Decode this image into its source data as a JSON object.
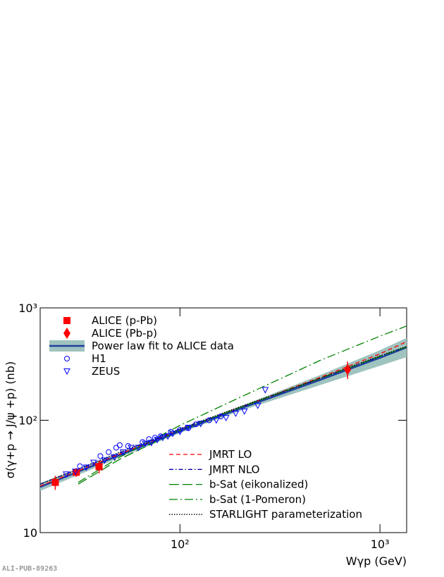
{
  "chart_data": {
    "type": "scatter",
    "y_label": "σ(γ+p → J/ψ +p) (nb)",
    "x_label": "Wγp (GeV)",
    "footnote": "ALI-PUB-89263",
    "xscale": "log",
    "yscale": "log",
    "xlim": [
      20,
      1360
    ],
    "ylim": [
      10,
      1000
    ],
    "xticks": [
      {
        "value": 100,
        "label": "10²"
      },
      {
        "value": 1000,
        "label": "10³"
      }
    ],
    "yticks": [
      10,
      {
        "value": 100,
        "label": "10²"
      },
      {
        "value": 1000,
        "label": "10³"
      }
    ],
    "series": [
      {
        "name": "ALICE (p-Pb)",
        "color": "#ff0000",
        "marker": "square",
        "legend": "upper left",
        "x": [
          23.8,
          30.3,
          39.4
        ],
        "values": [
          28,
          34.4,
          38.6
        ],
        "errors": [
          4,
          3,
          5
        ]
      },
      {
        "name": "ALICE (Pb-p)",
        "color": "#ff0000",
        "marker": "diamond",
        "legend": "upper left",
        "x": [
          689
        ],
        "values": [
          283
        ],
        "errors": [
          50
        ]
      },
      {
        "name": "Power law fit to ALICE data",
        "color": "#1f3f9f",
        "marker": "band-line",
        "band_color": "#9fc3bf",
        "legend": "upper left",
        "x": [
          20,
          50,
          100,
          200,
          500,
          1000,
          1360
        ],
        "values": [
          25.5,
          49,
          80,
          127,
          228,
          360,
          445
        ],
        "lower": [
          23.5,
          46.5,
          77,
          121,
          205,
          305,
          365
        ],
        "upper": [
          27.5,
          51.5,
          83,
          133,
          252,
          420,
          540
        ]
      },
      {
        "name": "H1",
        "color": "#0000ff",
        "marker": "circle",
        "legend": "upper left",
        "x": [
          31.6,
          40,
          44,
          48,
          50,
          55,
          65,
          70,
          75,
          80,
          90,
          100,
          110,
          120,
          140,
          160
        ],
        "values": [
          39,
          48,
          52,
          57,
          60,
          59,
          64,
          68,
          70,
          72,
          79,
          82,
          85,
          92,
          100,
          108
        ]
      },
      {
        "name": "ZEUS",
        "color": "#0000ff",
        "marker": "triangle-down",
        "legend": "upper left",
        "x": [
          27,
          30,
          34,
          37,
          42,
          47,
          52,
          57,
          62,
          67,
          72,
          77,
          82,
          87,
          92,
          100,
          110,
          127,
          152,
          170,
          190,
          210,
          245,
          267
        ],
        "values": [
          33,
          35,
          38,
          42,
          44,
          47,
          52,
          57,
          57,
          62,
          63,
          67,
          70,
          72,
          76,
          79,
          86,
          93,
          100,
          105,
          115,
          120,
          135,
          186
        ]
      },
      {
        "name": "JMRT LO",
        "color": "#ff0000",
        "marker": "line",
        "dash": "6,4",
        "legend": "lower right",
        "x": [
          20,
          50,
          100,
          200,
          500,
          1000,
          1360
        ],
        "values": [
          26,
          50,
          82,
          130,
          240,
          390,
          500
        ]
      },
      {
        "name": "JMRT NLO",
        "color": "#0000aa",
        "marker": "line",
        "dash": "6,3,1.5,3",
        "legend": "lower right",
        "x": [
          20,
          50,
          100,
          200,
          500,
          1000,
          1360
        ],
        "values": [
          27,
          51,
          83,
          130,
          235,
          370,
          450
        ]
      },
      {
        "name": "b-Sat (eikonalized)",
        "color": "#008000",
        "marker": "line",
        "dash": "14,5",
        "legend": "lower right",
        "x": [
          31,
          50,
          100,
          200,
          500,
          1000,
          1360
        ],
        "values": [
          27,
          45,
          82,
          130,
          235,
          370,
          450
        ]
      },
      {
        "name": "b-Sat (1-Pomeron)",
        "color": "#008000",
        "marker": "line",
        "dash": "12,4,2,4",
        "legend": "lower right",
        "x": [
          31,
          50,
          100,
          200,
          500,
          1000,
          1360
        ],
        "values": [
          28,
          47,
          90,
          160,
          340,
          560,
          690
        ]
      },
      {
        "name": "STARLIGHT parameterization",
        "color": "#000000",
        "marker": "line",
        "dash": "1.5,2",
        "legend": "lower right",
        "x": [
          20,
          50,
          100,
          200,
          500,
          1000,
          1360
        ],
        "values": [
          27,
          52,
          84,
          132,
          236,
          375,
          455
        ]
      }
    ]
  }
}
